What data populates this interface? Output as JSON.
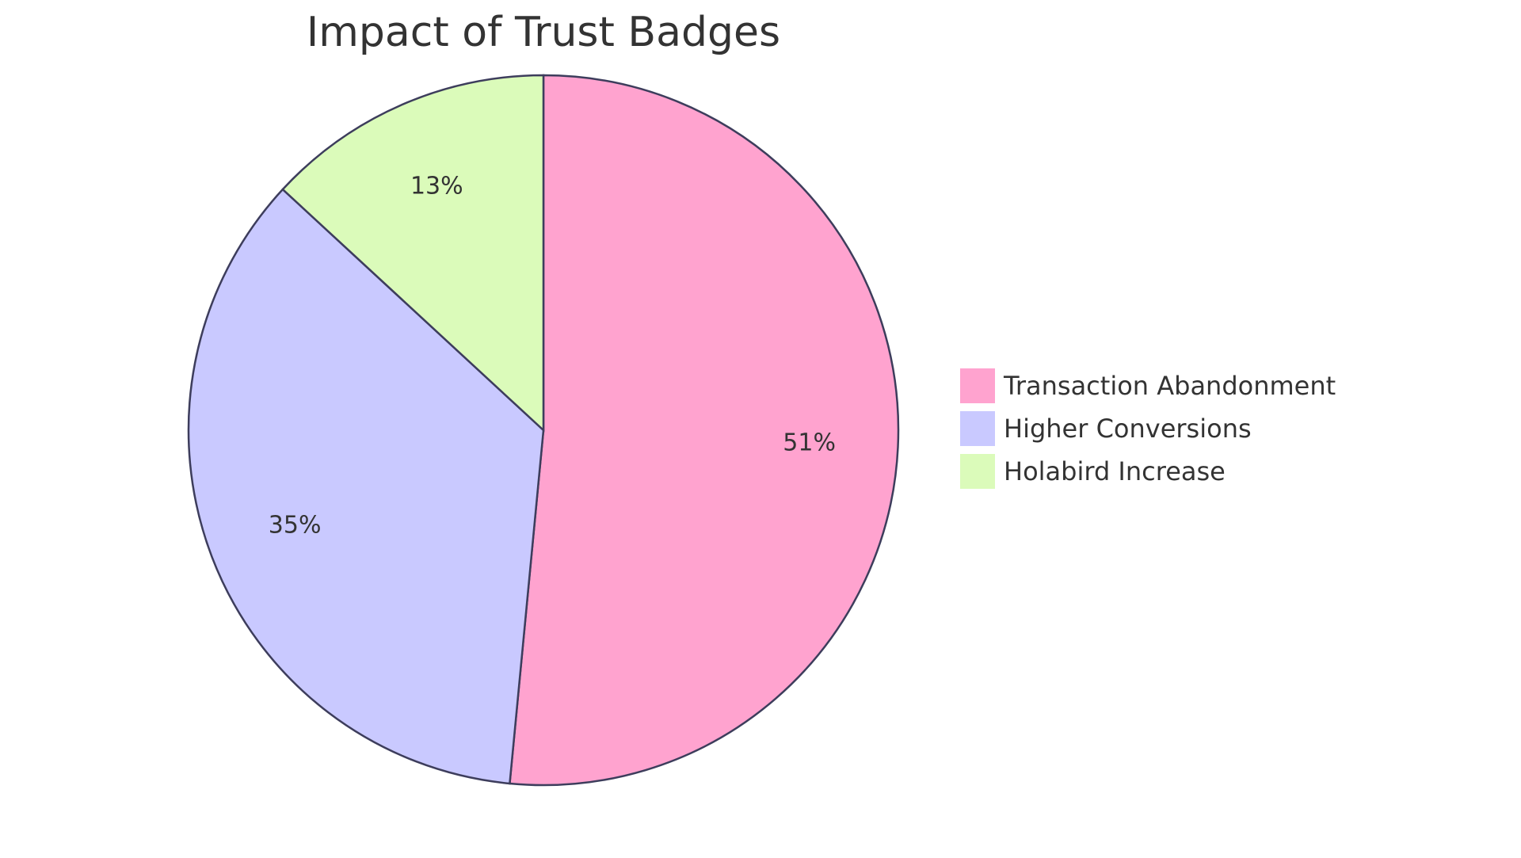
{
  "chart_data": {
    "type": "pie",
    "title": "Impact of Trust Badges",
    "categories": [
      "Transaction Abandonment",
      "Higher Conversions",
      "Holabird Increase"
    ],
    "values": [
      51,
      35,
      13
    ],
    "labels": [
      "51%",
      "35%",
      "13%"
    ],
    "colors": [
      "#ffa3cf",
      "#c9c9ff",
      "#dbfbba"
    ],
    "stroke_color": "#3d3d5c",
    "legend_position": "right"
  }
}
